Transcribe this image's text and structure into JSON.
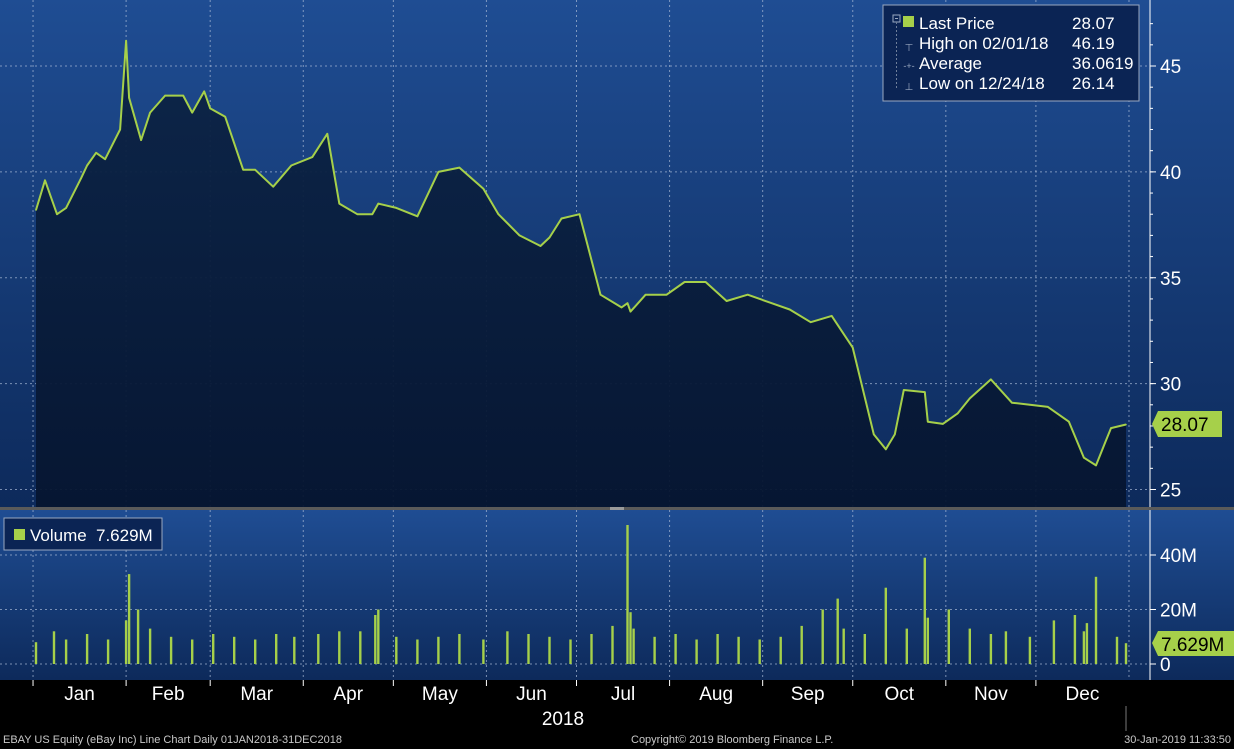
{
  "colors": {
    "line": "#a6d04a",
    "volume": "#a6d04a",
    "label_fill": "#a6d04a",
    "axis_text": "#ffffff",
    "bg_top": "#1f4d93",
    "bg_bottom": "#0d2a5b"
  },
  "chart_data": [
    {
      "type": "area",
      "title": "",
      "ylabel": "",
      "ylim": [
        24,
        48
      ],
      "y_ticks": [
        "25",
        "30",
        "35",
        "40",
        "45"
      ],
      "x_ticks": [
        "Jan",
        "Feb",
        "Mar",
        "Apr",
        "May",
        "Jun",
        "Jul",
        "Aug",
        "Sep",
        "Oct",
        "Nov",
        "Dec"
      ],
      "x_axis_title": "2018",
      "series": [
        {
          "name": "Last Price",
          "x": [
            "2018-01-02",
            "2018-01-05",
            "2018-01-09",
            "2018-01-12",
            "2018-01-17",
            "2018-01-19",
            "2018-01-22",
            "2018-01-25",
            "2018-01-30",
            "2018-02-01",
            "2018-02-02",
            "2018-02-06",
            "2018-02-09",
            "2018-02-14",
            "2018-02-20",
            "2018-02-23",
            "2018-02-27",
            "2018-03-01",
            "2018-03-06",
            "2018-03-12",
            "2018-03-16",
            "2018-03-22",
            "2018-03-28",
            "2018-04-04",
            "2018-04-09",
            "2018-04-13",
            "2018-04-19",
            "2018-04-24",
            "2018-04-26",
            "2018-05-02",
            "2018-05-09",
            "2018-05-16",
            "2018-05-23",
            "2018-05-31",
            "2018-06-05",
            "2018-06-12",
            "2018-06-19",
            "2018-06-22",
            "2018-06-26",
            "2018-07-02",
            "2018-07-09",
            "2018-07-16",
            "2018-07-18",
            "2018-07-19",
            "2018-07-24",
            "2018-07-31",
            "2018-08-06",
            "2018-08-13",
            "2018-08-20",
            "2018-08-27",
            "2018-09-04",
            "2018-09-10",
            "2018-09-17",
            "2018-09-24",
            "2018-10-01",
            "2018-10-08",
            "2018-10-12",
            "2018-10-15",
            "2018-10-18",
            "2018-10-25",
            "2018-10-26",
            "2018-10-31",
            "2018-11-05",
            "2018-11-09",
            "2018-11-16",
            "2018-11-23",
            "2018-11-29",
            "2018-12-05",
            "2018-12-12",
            "2018-12-17",
            "2018-12-21",
            "2018-12-24",
            "2018-12-26",
            "2018-12-31"
          ],
          "values": [
            38.2,
            39.6,
            38.0,
            38.3,
            39.7,
            40.3,
            40.9,
            40.6,
            42.0,
            46.19,
            43.5,
            41.5,
            42.8,
            43.6,
            43.6,
            42.8,
            43.8,
            43.0,
            42.6,
            40.1,
            40.1,
            39.3,
            40.3,
            40.7,
            41.8,
            38.5,
            38.0,
            38.0,
            38.5,
            38.3,
            37.9,
            40.0,
            40.2,
            39.2,
            38.0,
            37.0,
            36.5,
            36.9,
            37.8,
            38.0,
            34.2,
            33.6,
            33.8,
            33.4,
            34.2,
            34.2,
            34.8,
            34.8,
            33.9,
            34.2,
            33.8,
            33.5,
            32.9,
            33.2,
            31.7,
            27.6,
            26.9,
            27.6,
            29.7,
            29.6,
            28.2,
            28.1,
            28.6,
            29.3,
            30.2,
            29.1,
            29.0,
            28.9,
            28.2,
            26.5,
            26.14,
            27.2,
            27.9,
            28.07
          ]
        }
      ],
      "legend": {
        "entries": [
          {
            "label": "Last Price",
            "value": "28.07"
          },
          {
            "label": "High on 02/01/18",
            "value": "46.19"
          },
          {
            "label": "Average",
            "value": "36.0619"
          },
          {
            "label": "Low on 12/24/18",
            "value": "26.14"
          }
        ],
        "placement": "top-right"
      },
      "last_value_label": "28.07"
    },
    {
      "type": "bar",
      "title": "",
      "ylim": [
        0,
        52
      ],
      "y_ticks": [
        "0",
        "20M",
        "40M"
      ],
      "legend": {
        "entries": [
          {
            "label": "Volume",
            "value": "7.629M"
          }
        ],
        "placement": "top-left"
      },
      "last_value_label": "7.629M",
      "series": [
        {
          "name": "Volume",
          "unit": "M",
          "x": [
            "2018-01-02",
            "2018-01-08",
            "2018-01-12",
            "2018-01-19",
            "2018-01-26",
            "2018-02-01",
            "2018-02-02",
            "2018-02-05",
            "2018-02-09",
            "2018-02-16",
            "2018-02-23",
            "2018-03-02",
            "2018-03-09",
            "2018-03-16",
            "2018-03-23",
            "2018-03-29",
            "2018-04-06",
            "2018-04-13",
            "2018-04-20",
            "2018-04-25",
            "2018-04-26",
            "2018-05-02",
            "2018-05-09",
            "2018-05-16",
            "2018-05-23",
            "2018-05-31",
            "2018-06-08",
            "2018-06-15",
            "2018-06-22",
            "2018-06-29",
            "2018-07-06",
            "2018-07-13",
            "2018-07-18",
            "2018-07-19",
            "2018-07-20",
            "2018-07-27",
            "2018-08-03",
            "2018-08-10",
            "2018-08-17",
            "2018-08-24",
            "2018-08-31",
            "2018-09-07",
            "2018-09-14",
            "2018-09-21",
            "2018-09-26",
            "2018-09-28",
            "2018-10-05",
            "2018-10-12",
            "2018-10-19",
            "2018-10-25",
            "2018-10-26",
            "2018-11-02",
            "2018-11-09",
            "2018-11-16",
            "2018-11-21",
            "2018-11-29",
            "2018-12-07",
            "2018-12-14",
            "2018-12-17",
            "2018-12-18",
            "2018-12-21",
            "2018-12-28",
            "2018-12-31"
          ],
          "values": [
            8,
            12,
            9,
            11,
            9,
            16,
            33,
            20,
            13,
            10,
            9,
            11,
            10,
            9,
            11,
            10,
            11,
            12,
            12,
            18,
            20,
            10,
            9,
            10,
            11,
            9,
            12,
            11,
            10,
            9,
            11,
            14,
            51,
            19,
            13,
            10,
            11,
            9,
            11,
            10,
            9,
            10,
            14,
            20,
            24,
            13,
            11,
            28,
            13,
            39,
            17,
            20,
            13,
            11,
            12,
            10,
            16,
            18,
            12,
            15,
            32,
            10,
            7.629
          ]
        }
      ]
    }
  ],
  "footer": {
    "left": "EBAY US Equity (eBay Inc) Line Chart  Daily 01JAN2018-31DEC2018",
    "center": "Copyright© 2019 Bloomberg Finance L.P.",
    "right": "30-Jan-2019 11:33:50"
  }
}
